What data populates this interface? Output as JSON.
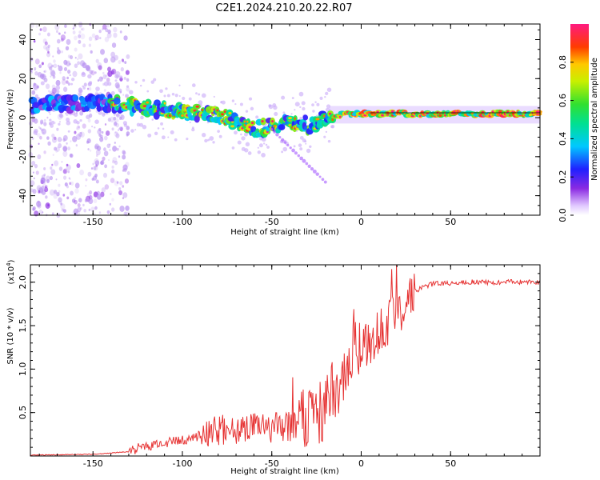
{
  "title": "C2E1.2024.210.20.22.R07",
  "chart_data": [
    {
      "type": "heatmap",
      "name": "spectrogram",
      "xlabel": "Height of straight line (km)",
      "ylabel": "Frequency (Hz)",
      "xlim": [
        -185,
        100
      ],
      "ylim": [
        -50,
        48
      ],
      "x_ticks": [
        -150,
        -100,
        -50,
        0,
        50
      ],
      "x_tick_labels": [
        "-150",
        "-100",
        "-50",
        "0",
        "50"
      ],
      "y_ticks": [
        -40,
        -20,
        0,
        20,
        40
      ],
      "y_tick_labels": [
        "-40",
        "-20",
        "0",
        "20",
        "40"
      ],
      "ridge": {
        "x": [
          -185,
          -150,
          -130,
          -110,
          -90,
          -75,
          -60,
          -45,
          -35,
          -30,
          -25,
          -20,
          -15,
          -5,
          10,
          50,
          100
        ],
        "y": [
          6,
          8,
          6,
          4,
          2,
          0,
          -6,
          -4,
          -2,
          -4,
          -3,
          0,
          1,
          2,
          2,
          2,
          2
        ]
      },
      "colorbar": {
        "label": "Normalized spectral amplitude",
        "range": [
          0,
          1
        ],
        "ticks": [
          0,
          0.2,
          0.4,
          0.6,
          0.8
        ],
        "tick_labels": [
          "0.0",
          "0.2",
          "0.4",
          "0.6",
          "0.8"
        ]
      }
    },
    {
      "type": "line",
      "name": "snr",
      "xlabel": "Height of straight line (km)",
      "ylabel": "SNR (10 * v/v)",
      "scale_label": "(x10",
      "scale_exponent": "4",
      "xlim": [
        -185,
        100
      ],
      "ylim": [
        0,
        2.2
      ],
      "x_ticks": [
        -150,
        -100,
        -50,
        0,
        50
      ],
      "x_tick_labels": [
        "-150",
        "-100",
        "-50",
        "0",
        "50"
      ],
      "y_ticks": [
        0.5,
        1.0,
        1.5,
        2.0
      ],
      "y_tick_labels": [
        "0.5",
        "1.0",
        "1.5",
        "2.0"
      ],
      "color": "#e63232",
      "trend": {
        "x": [
          -185,
          -150,
          -130,
          -120,
          -100,
          -80,
          -60,
          -40,
          -30,
          -20,
          -15,
          -10,
          0,
          10,
          20,
          30,
          40,
          60,
          80,
          100
        ],
        "y": [
          0.01,
          0.02,
          0.05,
          0.12,
          0.18,
          0.3,
          0.32,
          0.34,
          0.38,
          0.6,
          0.8,
          0.9,
          1.2,
          1.4,
          1.65,
          1.9,
          1.98,
          2.0,
          2.0,
          2.0
        ]
      }
    }
  ]
}
